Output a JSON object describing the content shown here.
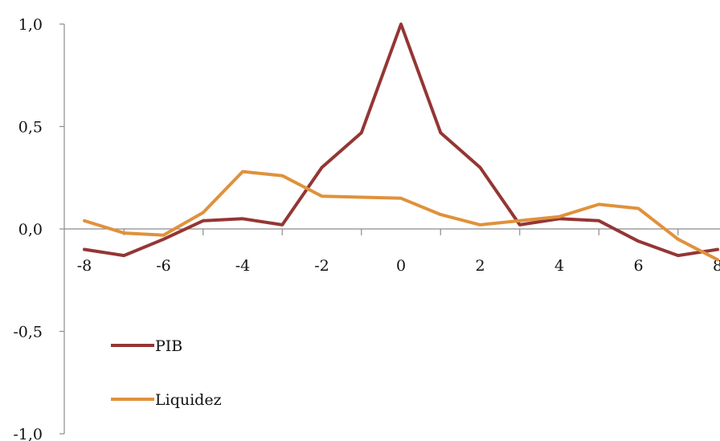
{
  "chart_data": {
    "type": "line",
    "title": "",
    "xlabel": "",
    "ylabel": "",
    "x": [
      -8,
      -7,
      -6,
      -5,
      -4,
      -3,
      -2,
      -1,
      0,
      1,
      2,
      3,
      4,
      5,
      6,
      7,
      8
    ],
    "xlim": [
      -8,
      8
    ],
    "ylim": [
      -1.0,
      1.0
    ],
    "x_ticks": [
      -8,
      -6,
      -4,
      -2,
      0,
      2,
      4,
      6,
      8
    ],
    "x_tick_labels": [
      "-8",
      "-6",
      "-4",
      "-2",
      "0",
      "2",
      "4",
      "6",
      "8"
    ],
    "y_ticks": [
      1.0,
      0.5,
      0.0,
      -0.5,
      -1.0
    ],
    "y_tick_labels": [
      "1,0",
      "0,5",
      "0,0",
      "-0,5",
      "-1,0"
    ],
    "grid": false,
    "legend_placement": "bottom-left",
    "series": [
      {
        "name": "PIB",
        "color": "#943634",
        "values": [
          -0.1,
          -0.13,
          -0.05,
          0.04,
          0.05,
          0.02,
          0.3,
          0.47,
          1.0,
          0.47,
          0.3,
          0.02,
          0.05,
          0.04,
          -0.06,
          -0.13,
          -0.1
        ]
      },
      {
        "name": "Liquidez",
        "color": "#E0913C",
        "values": [
          0.04,
          -0.02,
          -0.03,
          0.08,
          0.28,
          0.26,
          0.16,
          0.155,
          0.15,
          0.07,
          0.02,
          0.04,
          0.06,
          0.12,
          0.1,
          -0.05,
          -0.15
        ]
      }
    ]
  }
}
